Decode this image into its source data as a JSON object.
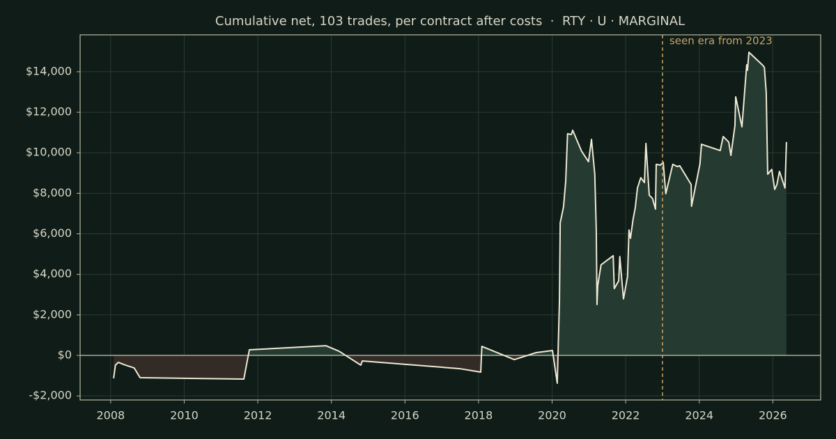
{
  "chart_data": {
    "type": "line",
    "title": "Cumulative net, 103 trades, per contract after costs  ·  RTY · U · MARGINAL",
    "x": [
      2008.08,
      2008.13,
      2008.21,
      2008.4,
      2008.64,
      2008.8,
      2011.62,
      2011.77,
      2013.85,
      2014.21,
      2014.8,
      2014.84,
      2017.49,
      2018.06,
      2018.09,
      2018.97,
      2019.57,
      2020.01,
      2020.14,
      2020.2,
      2020.22,
      2020.31,
      2020.37,
      2020.42,
      2020.52,
      2020.56,
      2020.8,
      2020.99,
      2021.07,
      2021.16,
      2021.2,
      2021.22,
      2021.24,
      2021.33,
      2021.66,
      2021.69,
      2021.81,
      2021.84,
      2021.94,
      2022.05,
      2022.09,
      2022.13,
      2022.2,
      2022.26,
      2022.32,
      2022.41,
      2022.51,
      2022.55,
      2022.64,
      2022.73,
      2022.81,
      2022.83,
      2022.94,
      2023.02,
      2023.09,
      2023.28,
      2023.4,
      2023.47,
      2023.78,
      2023.79,
      2024.02,
      2024.06,
      2024.57,
      2024.65,
      2024.8,
      2024.86,
      2024.97,
      2024.99,
      2025.16,
      2025.25,
      2025.29,
      2025.31,
      2025.35,
      2025.73,
      2025.77,
      2025.82,
      2025.86,
      2025.97,
      2026.05,
      2026.11,
      2026.18,
      2026.33,
      2026.37
    ],
    "values": [
      -1135,
      -480,
      -344,
      -480,
      -620,
      -1100,
      -1170,
      275,
      480,
      206,
      -480,
      -275,
      -655,
      -825,
      447,
      -206,
      138,
      240,
      -1376,
      2750,
      6540,
      7330,
      8600,
      10940,
      10900,
      11110,
      10080,
      9560,
      10660,
      8940,
      6190,
      2510,
      3440,
      4470,
      4920,
      3300,
      3680,
      4880,
      2790,
      3890,
      6190,
      5780,
      6710,
      7290,
      8260,
      8770,
      8530,
      10460,
      7910,
      7740,
      7220,
      9430,
      9390,
      9530,
      7980,
      9430,
      9320,
      9360,
      8430,
      7360,
      9460,
      10420,
      10110,
      10800,
      10530,
      9870,
      11350,
      12760,
      11280,
      13420,
      14340,
      14070,
      14960,
      14310,
      14210,
      12970,
      8940,
      9180,
      8190,
      8430,
      9080,
      8260,
      10530
    ],
    "color": "#efe9d6",
    "positive_fill": "#253a30",
    "negative_fill": "#332b25",
    "xlim": [
      2007.17,
      2027.3
    ],
    "xticks": [
      2008,
      2010,
      2012,
      2014,
      2016,
      2018,
      2020,
      2022,
      2024,
      2026
    ],
    "ylim": [
      -2200,
      15820
    ],
    "yticks": [
      {
        "value": -2000,
        "label": "-$2,000"
      },
      {
        "value": 0,
        "label": "$0"
      },
      {
        "value": 2000,
        "label": "$2,000"
      },
      {
        "value": 4000,
        "label": "$4,000"
      },
      {
        "value": 6000,
        "label": "$6,000"
      },
      {
        "value": 8000,
        "label": "$8,000"
      },
      {
        "value": 10000,
        "label": "$10,000"
      },
      {
        "value": 12000,
        "label": "$12,000"
      },
      {
        "value": 14000,
        "label": "$14,000"
      }
    ],
    "grid": true,
    "annotation": {
      "x": 2023,
      "label": "seen era from 2023",
      "color": "#c9a46a"
    }
  }
}
